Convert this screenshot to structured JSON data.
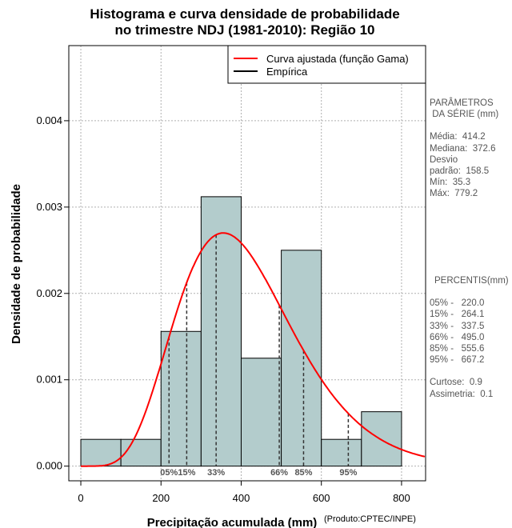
{
  "chart_data": {
    "type": "histogram",
    "title_lines": [
      "Histograma e curva densidade de probabilidade",
      "no trimestre NDJ (1981-2010): Região 10"
    ],
    "xlabel": "Precipitação acumulada (mm)",
    "ylabel": "Densidade de probabilidade",
    "credit": "(Produto:CPTEC/INPE)",
    "xlim": [
      -30,
      860
    ],
    "ylim": [
      -0.00017,
      0.00487
    ],
    "xticks": [
      0,
      200,
      400,
      600,
      800
    ],
    "xtick_labels": [
      "0",
      "200",
      "400",
      "600",
      "800"
    ],
    "yticks": [
      0.0,
      0.001,
      0.002,
      0.003,
      0.004
    ],
    "ytick_labels": [
      "0.000",
      "0.001",
      "0.002",
      "0.003",
      "0.004"
    ],
    "bar_width": 100,
    "bars": [
      {
        "x0": 0,
        "x1": 100,
        "density": 0.00031
      },
      {
        "x0": 100,
        "x1": 200,
        "density": 0.00031
      },
      {
        "x0": 200,
        "x1": 300,
        "density": 0.00156
      },
      {
        "x0": 300,
        "x1": 400,
        "density": 0.00312
      },
      {
        "x0": 400,
        "x1": 500,
        "density": 0.00125
      },
      {
        "x0": 500,
        "x1": 600,
        "density": 0.0025
      },
      {
        "x0": 600,
        "x1": 700,
        "density": 0.00031
      },
      {
        "x0": 700,
        "x1": 800,
        "density": 0.00063
      }
    ],
    "gamma_fit": {
      "shape": 7.0,
      "scale": 59.2,
      "peak_density": 0.0027,
      "x_range": [
        0,
        860
      ]
    },
    "percentile_markers": [
      {
        "label": "05%",
        "value": 220.0
      },
      {
        "label": "15%",
        "value": 264.1
      },
      {
        "label": "33%",
        "value": 337.5
      },
      {
        "label": "66%",
        "value": 495.0
      },
      {
        "label": "85%",
        "value": 555.6
      },
      {
        "label": "95%",
        "value": 667.2
      }
    ],
    "legend": [
      {
        "label": "Curva ajustada (função Gama)",
        "color": "#ff0000"
      },
      {
        "label": "Empírica",
        "color": "#000000"
      }
    ],
    "legend_position": "top-right",
    "grid": true,
    "colors": {
      "bar_fill": "#b3cccc",
      "curve": "#ff0000",
      "grid": "#b0b0b0",
      "marker": "#333333"
    }
  },
  "side_panel": {
    "parametros_title": [
      "PARÂMETROS",
      " DA SÉRIE (mm)"
    ],
    "parametros": [
      "Média:  414.2",
      "Mediana:  372.6",
      "Desvio",
      "padrão:  158.5",
      "Mín:  35.3",
      "Máx:  779.2"
    ],
    "percentis_title": "PERCENTIS(mm)",
    "percentis": [
      "05% -   220.0",
      "15% -   264.1",
      "33% -   337.5",
      "66% -   495.0",
      "85% -   555.6",
      "95% -   667.2"
    ],
    "extras": [
      "Curtose:  0.9",
      "Assimetria:  0.1"
    ]
  }
}
